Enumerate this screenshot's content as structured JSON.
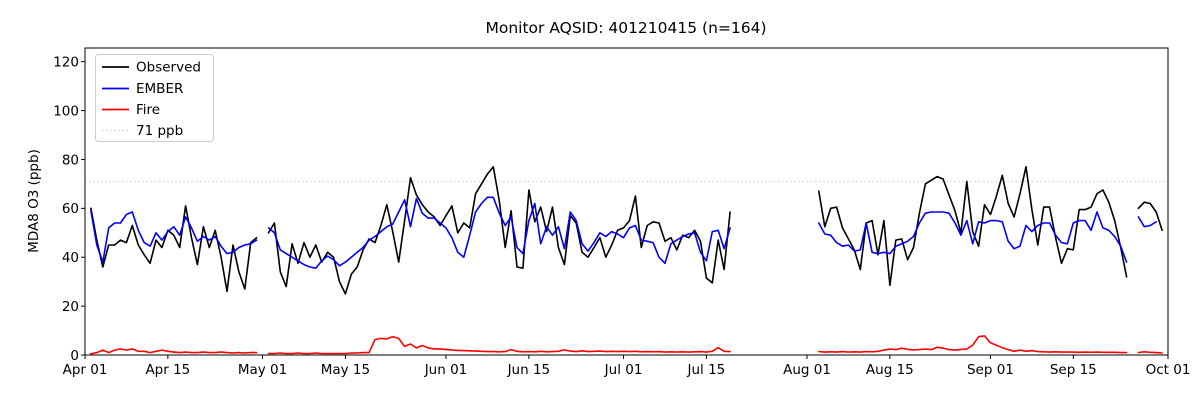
{
  "title": "Monitor AQSID: 401210415 (n=164)",
  "ylabel": "MDA8 O3 (ppb)",
  "legend": [
    {
      "label": "Observed",
      "color": "#000000",
      "style": "solid"
    },
    {
      "label": "EMBER",
      "color": "#0000ff",
      "style": "solid"
    },
    {
      "label": "Fire",
      "color": "#ff0000",
      "style": "solid"
    },
    {
      "label": "71 ppb",
      "color": "#d3d3d3",
      "style": "dotted"
    }
  ],
  "chart_data": {
    "type": "line",
    "title": "Monitor AQSID: 401210415 (n=164)",
    "xlabel": "",
    "ylabel": "MDA8 O3 (ppb)",
    "ylim": [
      0,
      125.6
    ],
    "y_ticks": [
      0,
      20,
      40,
      60,
      80,
      100,
      120
    ],
    "grid": false,
    "legend_position": "upper left",
    "threshold": {
      "value": 71,
      "label": "71 ppb",
      "color": "#d3d3d3",
      "style": "dotted"
    },
    "x_axis": {
      "unit": "days since Apr 01",
      "total_days": 183,
      "ticks": [
        {
          "d": 0,
          "label": "Apr 01"
        },
        {
          "d": 14,
          "label": "Apr 15"
        },
        {
          "d": 30,
          "label": "May 01"
        },
        {
          "d": 44,
          "label": "May 15"
        },
        {
          "d": 61,
          "label": "Jun 01"
        },
        {
          "d": 75,
          "label": "Jun 15"
        },
        {
          "d": 91,
          "label": "Jul 01"
        },
        {
          "d": 105,
          "label": "Jul 15"
        },
        {
          "d": 122,
          "label": "Aug 01"
        },
        {
          "d": 136,
          "label": "Aug 15"
        },
        {
          "d": 153,
          "label": "Sep 01"
        },
        {
          "d": 167,
          "label": "Sep 15"
        },
        {
          "d": 183,
          "label": "Oct 01"
        }
      ]
    },
    "series": [
      {
        "name": "Observed",
        "color": "#000000",
        "style": "solid",
        "values": [
          null,
          60,
          47,
          36,
          45,
          45,
          47,
          46,
          53,
          45,
          41,
          37.5,
          47,
          44,
          51,
          49,
          44,
          61,
          48,
          37,
          52.5,
          44,
          51,
          40,
          26,
          45,
          34,
          27,
          46,
          48,
          null,
          50,
          54,
          34,
          28,
          45.5,
          37.5,
          46,
          40,
          45,
          38,
          42,
          40,
          30,
          25,
          33,
          36,
          43,
          47.5,
          46,
          53,
          61.5,
          50.5,
          38,
          55,
          72.5,
          65.5,
          61.5,
          58.5,
          56.5,
          53,
          57,
          61,
          50,
          54,
          52,
          66,
          70,
          74,
          77,
          63,
          44,
          59,
          36,
          35.5,
          67.5,
          54.5,
          60.5,
          50.5,
          60.5,
          44,
          37,
          57,
          54,
          42,
          40,
          44,
          48,
          40,
          45,
          51,
          52,
          55,
          65,
          44,
          53,
          54.5,
          54,
          46.5,
          48,
          43,
          49,
          48,
          51,
          46.5,
          31.5,
          29.5,
          47,
          35,
          58.5,
          null,
          null,
          null,
          null,
          null,
          null,
          null,
          null,
          null,
          null,
          null,
          null,
          null,
          null,
          67,
          52.5,
          60,
          60.5,
          52,
          47.5,
          43,
          35,
          54,
          55,
          41,
          55,
          28.5,
          47,
          47.5,
          39,
          44,
          58,
          70,
          71.5,
          73,
          72,
          65.5,
          59,
          50,
          71,
          50.5,
          44.5,
          61.5,
          57.5,
          65,
          73.5,
          62,
          56.5,
          66,
          77,
          59.5,
          45,
          60.5,
          60.5,
          48,
          37.5,
          43.5,
          43,
          59.5,
          59.5,
          60.5,
          66,
          67.5,
          62.5,
          55,
          44,
          32,
          null,
          60,
          62.5,
          62,
          58.5,
          51,
          null
        ]
      },
      {
        "name": "EMBER",
        "color": "#0000ff",
        "style": "solid",
        "values": [
          null,
          59,
          45,
          38,
          52,
          54,
          54,
          57.5,
          58.5,
          51,
          46,
          44.5,
          50,
          47,
          50.5,
          52.5,
          49,
          56.5,
          52,
          46.5,
          48.5,
          47,
          48.5,
          44.5,
          41.5,
          42,
          44,
          45,
          45.5,
          47,
          null,
          52,
          50,
          43,
          41.5,
          40,
          38.5,
          37,
          36,
          35.5,
          38.5,
          40.5,
          39,
          36.5,
          38,
          40,
          42,
          44,
          47,
          48.5,
          50.5,
          52.5,
          53.5,
          58.5,
          63.5,
          52.5,
          64,
          58,
          56,
          56,
          54,
          52,
          48,
          42,
          40,
          49,
          58.5,
          62,
          64.5,
          64.5,
          58,
          53,
          56.5,
          44,
          41.5,
          55,
          62,
          45.5,
          52.5,
          49,
          52.5,
          43.5,
          58.5,
          55,
          45.5,
          42.5,
          46,
          50,
          48.5,
          50.5,
          49.5,
          48,
          52,
          53,
          47,
          46.5,
          46,
          40,
          37.5,
          45.5,
          47,
          48.5,
          49.5,
          50,
          42,
          38.5,
          50.5,
          51,
          43.5,
          52,
          null,
          null,
          null,
          null,
          null,
          null,
          null,
          null,
          null,
          null,
          null,
          null,
          null,
          null,
          54,
          49.5,
          49,
          46,
          44.5,
          45,
          42.5,
          43,
          54,
          42,
          41.5,
          42,
          41.5,
          44.5,
          45.5,
          46.5,
          48.5,
          54,
          58,
          58.5,
          58.5,
          58.5,
          58,
          54,
          49,
          55,
          45.5,
          54.5,
          54,
          55,
          55,
          54.5,
          46.5,
          43.5,
          44.5,
          53,
          50.5,
          53,
          54,
          54,
          49,
          46,
          45.5,
          54,
          55,
          55,
          51,
          58.5,
          52,
          51,
          48.5,
          44.5,
          38,
          null,
          56.5,
          52.5,
          53,
          54.5,
          null,
          null
        ]
      },
      {
        "name": "Fire",
        "color": "#ff0000",
        "style": "solid",
        "values": [
          null,
          0.5,
          1,
          2,
          1,
          2,
          2.5,
          2,
          2.5,
          1.5,
          1.5,
          1,
          1.5,
          2,
          1.5,
          1.2,
          1,
          1.2,
          1,
          1,
          1.2,
          1,
          1,
          1.2,
          1,
          0.8,
          1,
          0.8,
          1,
          1,
          null,
          0.6,
          0.6,
          0.8,
          0.6,
          0.6,
          0.8,
          0.6,
          0.6,
          0.8,
          0.6,
          0.6,
          0.6,
          0.6,
          0.6,
          0.8,
          0.8,
          1,
          1,
          6.3,
          6.8,
          6.6,
          7.5,
          6.8,
          3.5,
          4.5,
          2.9,
          3.9,
          2.9,
          2.5,
          2.5,
          2.3,
          2,
          1.9,
          1.8,
          1.7,
          1.6,
          1.5,
          1.4,
          1.4,
          1.3,
          1.4,
          2.2,
          1.5,
          1.3,
          1.4,
          1.3,
          1.5,
          1.3,
          1.4,
          1.5,
          2.1,
          1.6,
          1.4,
          1.7,
          1.4,
          1.5,
          1.6,
          1.4,
          1.5,
          1.4,
          1.5,
          1.4,
          1.5,
          1.3,
          1.4,
          1.3,
          1.4,
          1.2,
          1.3,
          1.2,
          1.3,
          1.2,
          1.3,
          1.4,
          1.2,
          1.5,
          3,
          1.5,
          1.4,
          null,
          null,
          null,
          null,
          null,
          null,
          null,
          null,
          null,
          null,
          null,
          null,
          null,
          null,
          1.4,
          1.2,
          1.3,
          1.2,
          1.4,
          1.2,
          1.3,
          1.2,
          1.4,
          1.3,
          1.5,
          2,
          2.4,
          2.2,
          2.8,
          2.3,
          2.1,
          2.2,
          2.4,
          2.2,
          3.2,
          2.8,
          2.2,
          2,
          2.3,
          2.5,
          4,
          7.5,
          7.8,
          5,
          4,
          3,
          2.2,
          1.5,
          2,
          1.5,
          1.8,
          1.4,
          1.3,
          1.2,
          1.3,
          1.2,
          1.2,
          1.2,
          1.1,
          1.2,
          1.1,
          1.2,
          1.1,
          1.1,
          1.1,
          1,
          1,
          null,
          1,
          1.3,
          1.1,
          1,
          0.8,
          null
        ]
      }
    ]
  }
}
